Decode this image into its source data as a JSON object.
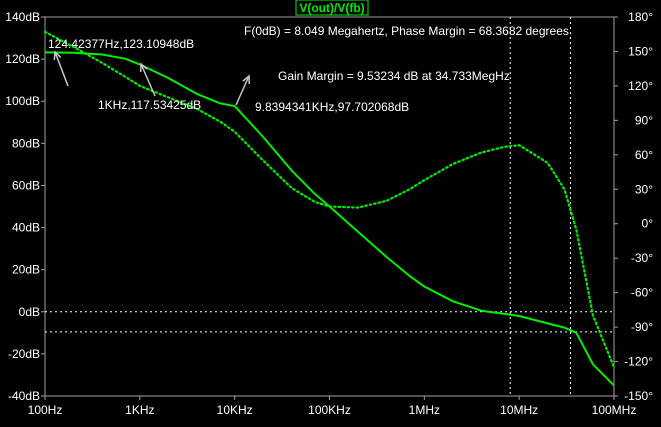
{
  "chart_data": {
    "type": "line",
    "title": "V(out)/V(fb)",
    "x_scale": "log",
    "x_ticks": [
      {
        "value": 100,
        "label": "100Hz"
      },
      {
        "value": 1000,
        "label": "1KHz"
      },
      {
        "value": 10000,
        "label": "10KHz"
      },
      {
        "value": 100000,
        "label": "100KHz"
      },
      {
        "value": 1000000,
        "label": "1MHz"
      },
      {
        "value": 10000000,
        "label": "10MHz"
      },
      {
        "value": 100000000,
        "label": "100MHz"
      }
    ],
    "xlim": [
      100,
      100000000
    ],
    "ylim_left": [
      -40,
      140
    ],
    "ylim_right": [
      -150,
      180
    ],
    "y_left_ticks": [
      {
        "value": 140,
        "label": "140dB"
      },
      {
        "value": 120,
        "label": "120dB"
      },
      {
        "value": 100,
        "label": "100dB"
      },
      {
        "value": 80,
        "label": "80dB"
      },
      {
        "value": 60,
        "label": "60dB"
      },
      {
        "value": 40,
        "label": "40dB"
      },
      {
        "value": 20,
        "label": "20dB"
      },
      {
        "value": 0,
        "label": "0dB"
      },
      {
        "value": -20,
        "label": "-20dB"
      },
      {
        "value": -40,
        "label": "-40dB"
      }
    ],
    "y_right_ticks": [
      {
        "value": 180,
        "label": "180°"
      },
      {
        "value": 150,
        "label": "150°"
      },
      {
        "value": 120,
        "label": "120°"
      },
      {
        "value": 90,
        "label": "90°"
      },
      {
        "value": 60,
        "label": "60°"
      },
      {
        "value": 30,
        "label": "30°"
      },
      {
        "value": 0,
        "label": "0°"
      },
      {
        "value": -30,
        "label": "-30°"
      },
      {
        "value": -60,
        "label": "-60°"
      },
      {
        "value": -90,
        "label": "-90°"
      },
      {
        "value": -120,
        "label": "-120°"
      },
      {
        "value": -150,
        "label": "-150°"
      }
    ],
    "grid": false,
    "reference_lines": {
      "horizontal_db": [
        0,
        -9.53
      ],
      "vertical_hz": [
        8049000,
        34733000
      ]
    },
    "series": [
      {
        "axis": "left",
        "style": "solid",
        "x": [
          100,
          200,
          400,
          700,
          1000,
          2000,
          4000,
          7000,
          10000,
          20000,
          40000,
          70000,
          100000,
          200000,
          400000,
          700000,
          1000000,
          2000000,
          4000000,
          7000000,
          10000000,
          20000000,
          30000000,
          40000000,
          60000000,
          100000000
        ],
        "y": [
          123.2,
          123.0,
          122.2,
          120.2,
          117.5,
          111.0,
          103.5,
          99.0,
          97.7,
          83.0,
          67.0,
          56.0,
          50.0,
          38.0,
          26.0,
          17.0,
          12.0,
          5.0,
          0.5,
          -1.0,
          -2.0,
          -5.5,
          -7.5,
          -10.0,
          -25.0,
          -35.0
        ]
      },
      {
        "axis": "right",
        "style": "dotted",
        "x": [
          100,
          200,
          400,
          700,
          1000,
          2000,
          4000,
          7000,
          10000,
          20000,
          40000,
          70000,
          100000,
          200000,
          400000,
          700000,
          1000000,
          2000000,
          4000000,
          7000000,
          10000000,
          20000000,
          30000000,
          40000000,
          60000000,
          100000000
        ],
        "y": [
          167.0,
          154.0,
          140.0,
          128.0,
          120.0,
          110.0,
          100.0,
          89.0,
          80.0,
          55.0,
          31.0,
          19.0,
          15.0,
          14.0,
          20.0,
          30.0,
          38.0,
          52.0,
          62.0,
          67.0,
          68.4,
          53.0,
          30.0,
          -5.0,
          -80.0,
          -125.0
        ]
      }
    ],
    "annotations": {
      "fodb": "F(0dB) = 8.049 Megahertz, Phase Margin = 68.3682 degrees",
      "gain_margin": "Gain Margin = 9.53234 dB at 34.733MegHz",
      "marker1": "124.42377Hz,123.10948dB",
      "marker2": "1KHz,117.53425dB",
      "marker3": "9.8394341KHz,97.702068dB"
    },
    "colors": {
      "background": "#000000",
      "trace": "#00ee00",
      "axis": "#a0a0a0",
      "text": "#ffffff",
      "reference": "#ffffff",
      "arrow": "#c8c8c8"
    }
  }
}
